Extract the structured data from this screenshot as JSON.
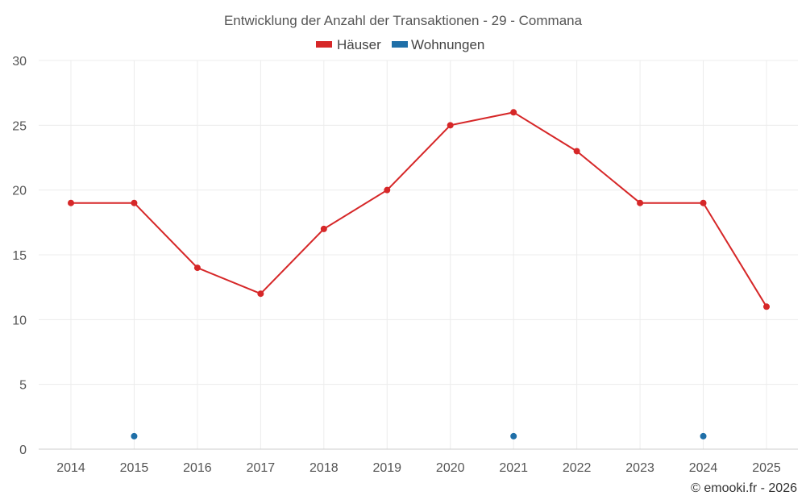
{
  "chart_data": {
    "type": "line",
    "title": "Entwicklung der Anzahl der Transaktionen - 29 - Commana",
    "xlabel": "",
    "ylabel": "",
    "categories": [
      "2014",
      "2015",
      "2016",
      "2017",
      "2018",
      "2019",
      "2020",
      "2021",
      "2022",
      "2023",
      "2024",
      "2025"
    ],
    "ylim": [
      0,
      30
    ],
    "yticks": [
      0,
      5,
      10,
      15,
      20,
      25,
      30
    ],
    "grid": true,
    "legend_position": "top-center",
    "series": [
      {
        "name": "Häuser",
        "color": "#d62728",
        "values": [
          19,
          19,
          14,
          12,
          17,
          20,
          25,
          26,
          23,
          19,
          19,
          11
        ]
      },
      {
        "name": "Wohnungen",
        "color": "#1f6fa8",
        "values": [
          null,
          1,
          null,
          null,
          null,
          null,
          null,
          1,
          null,
          null,
          1,
          null
        ]
      }
    ]
  },
  "footer": {
    "copyright": "© emooki.fr - 2026"
  }
}
